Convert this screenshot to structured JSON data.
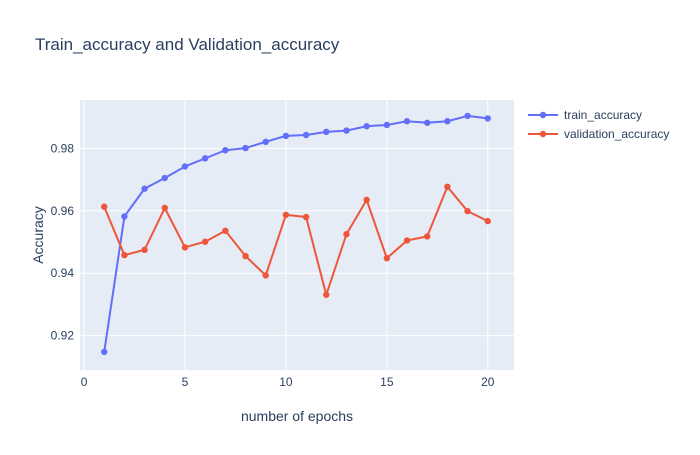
{
  "chart_data": {
    "type": "line",
    "title": "Train_accuracy and Validation_accuracy",
    "xlabel": "number of epochs",
    "ylabel": "Accuracy",
    "xlim": [
      -0.2,
      21.3
    ],
    "ylim": [
      0.909,
      0.9955
    ],
    "xticks": [
      0,
      5,
      10,
      15,
      20
    ],
    "yticks": [
      0.92,
      0.94,
      0.96,
      0.98
    ],
    "xtick_labels": [
      "0",
      "5",
      "10",
      "15",
      "20"
    ],
    "ytick_labels": [
      "0.92",
      "0.94",
      "0.96",
      "0.98"
    ],
    "grid": true,
    "legend_position": "top-right",
    "x": [
      1,
      2,
      3,
      4,
      5,
      6,
      7,
      8,
      9,
      10,
      11,
      12,
      13,
      14,
      15,
      16,
      17,
      18,
      19,
      20
    ],
    "series": [
      {
        "name": "train_accuracy",
        "color": "#636efa",
        "values": [
          0.9148,
          0.9582,
          0.9671,
          0.9705,
          0.9742,
          0.9768,
          0.9794,
          0.9801,
          0.9821,
          0.984,
          0.9843,
          0.9853,
          0.9857,
          0.9871,
          0.9875,
          0.9887,
          0.9882,
          0.9887,
          0.9904,
          0.9896
        ]
      },
      {
        "name": "validation_accuracy",
        "color": "#ef553b",
        "values": [
          0.9613,
          0.9458,
          0.9475,
          0.9609,
          0.9483,
          0.9501,
          0.9536,
          0.9455,
          0.9393,
          0.9587,
          0.958,
          0.9331,
          0.9525,
          0.9635,
          0.9448,
          0.9505,
          0.9518,
          0.9677,
          0.9599,
          0.9567
        ]
      }
    ]
  },
  "theme": {
    "plot_bg": "#e5ecf6",
    "grid_color": "#ffffff",
    "text_color": "#2a3f5f",
    "title_color": "#2a3f5f"
  }
}
